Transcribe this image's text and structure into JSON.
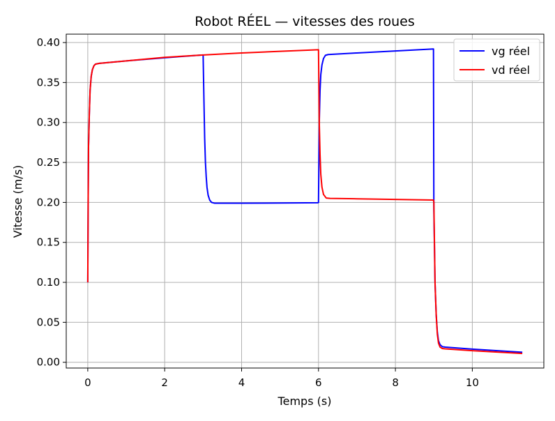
{
  "chart_data": {
    "type": "line",
    "title": "Robot RÉEL — vitesses des roues",
    "xlabel": "Temps (s)",
    "ylabel": "Vitesse (m/s)",
    "xlim": [
      -0.56,
      11.86
    ],
    "ylim": [
      -0.0072,
      0.4105
    ],
    "xticks": [
      0,
      2,
      4,
      6,
      8,
      10
    ],
    "xtick_labels": [
      "0",
      "2",
      "4",
      "6",
      "8",
      "10"
    ],
    "yticks": [
      0.0,
      0.05,
      0.1,
      0.15,
      0.2,
      0.25,
      0.3,
      0.35,
      0.4
    ],
    "ytick_labels": [
      "0.00",
      "0.05",
      "0.10",
      "0.15",
      "0.20",
      "0.25",
      "0.30",
      "0.35",
      "0.40"
    ],
    "grid": true,
    "legend_position": "top-right",
    "series": [
      {
        "name": "vg réel",
        "color": "#0000ff",
        "points": [
          [
            0.0,
            0.1
          ],
          [
            0.01,
            0.2
          ],
          [
            0.02,
            0.27
          ],
          [
            0.04,
            0.31
          ],
          [
            0.06,
            0.34
          ],
          [
            0.09,
            0.358
          ],
          [
            0.12,
            0.366
          ],
          [
            0.16,
            0.371
          ],
          [
            0.2,
            0.373
          ],
          [
            0.3,
            0.374
          ],
          [
            1.0,
            0.377
          ],
          [
            2.0,
            0.381
          ],
          [
            2.99,
            0.3845
          ],
          [
            3.0,
            0.384
          ],
          [
            3.02,
            0.33
          ],
          [
            3.04,
            0.28
          ],
          [
            3.06,
            0.25
          ],
          [
            3.08,
            0.232
          ],
          [
            3.1,
            0.219
          ],
          [
            3.13,
            0.209
          ],
          [
            3.17,
            0.203
          ],
          [
            3.22,
            0.2
          ],
          [
            3.3,
            0.199
          ],
          [
            4.0,
            0.199
          ],
          [
            5.0,
            0.1993
          ],
          [
            5.99,
            0.1996
          ],
          [
            6.0,
            0.2
          ],
          [
            6.02,
            0.3
          ],
          [
            6.04,
            0.34
          ],
          [
            6.06,
            0.36
          ],
          [
            6.09,
            0.372
          ],
          [
            6.13,
            0.38
          ],
          [
            6.18,
            0.384
          ],
          [
            6.25,
            0.385
          ],
          [
            7.0,
            0.387
          ],
          [
            8.0,
            0.3895
          ],
          [
            8.99,
            0.392
          ],
          [
            9.0,
            0.19
          ],
          [
            9.03,
            0.1
          ],
          [
            9.06,
            0.06
          ],
          [
            9.09,
            0.038
          ],
          [
            9.12,
            0.027
          ],
          [
            9.16,
            0.022
          ],
          [
            9.22,
            0.0195
          ],
          [
            9.3,
            0.019
          ],
          [
            10.0,
            0.0165
          ],
          [
            11.3,
            0.0125
          ]
        ]
      },
      {
        "name": "vd réel",
        "color": "#ff0000",
        "points": [
          [
            0.0,
            0.1
          ],
          [
            0.01,
            0.2
          ],
          [
            0.02,
            0.27
          ],
          [
            0.04,
            0.31
          ],
          [
            0.06,
            0.34
          ],
          [
            0.09,
            0.358
          ],
          [
            0.12,
            0.366
          ],
          [
            0.16,
            0.371
          ],
          [
            0.2,
            0.373
          ],
          [
            0.3,
            0.374
          ],
          [
            1.0,
            0.377
          ],
          [
            2.0,
            0.3815
          ],
          [
            3.0,
            0.3845
          ],
          [
            4.0,
            0.387
          ],
          [
            5.0,
            0.389
          ],
          [
            5.99,
            0.391
          ],
          [
            6.0,
            0.391
          ],
          [
            6.02,
            0.3
          ],
          [
            6.04,
            0.26
          ],
          [
            6.06,
            0.235
          ],
          [
            6.09,
            0.219
          ],
          [
            6.13,
            0.21
          ],
          [
            6.2,
            0.2055
          ],
          [
            6.3,
            0.205
          ],
          [
            7.0,
            0.2045
          ],
          [
            8.0,
            0.2037
          ],
          [
            8.99,
            0.203
          ],
          [
            9.0,
            0.2
          ],
          [
            9.03,
            0.1
          ],
          [
            9.06,
            0.06
          ],
          [
            9.09,
            0.035
          ],
          [
            9.12,
            0.024
          ],
          [
            9.16,
            0.019
          ],
          [
            9.22,
            0.0172
          ],
          [
            9.3,
            0.0168
          ],
          [
            10.0,
            0.0145
          ],
          [
            11.3,
            0.011
          ]
        ]
      }
    ]
  }
}
